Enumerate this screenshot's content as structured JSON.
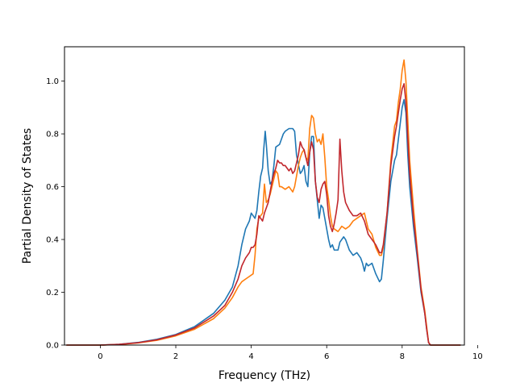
{
  "chart_data": {
    "type": "line",
    "title": "",
    "xlabel": "Frequency (THz)",
    "ylabel": "Partial Density of States",
    "xlim": [
      -0.95,
      9.65
    ],
    "ylim": [
      0.0,
      1.13
    ],
    "grid": false,
    "xticks": [
      0,
      2,
      4,
      6,
      8,
      10
    ],
    "yticks": [
      0.0,
      0.2,
      0.4,
      0.6,
      0.8,
      1.0
    ],
    "xtick_labels": [
      "0",
      "2",
      "4",
      "6",
      "8",
      "10"
    ],
    "ytick_labels": [
      "0.0",
      "0.2",
      "0.4",
      "0.6",
      "0.8",
      "1.0"
    ],
    "series": [
      {
        "color": "#1f77b4",
        "points": [
          [
            -0.9,
            0
          ],
          [
            -0.5,
            0
          ],
          [
            0,
            0
          ],
          [
            0.5,
            0.003
          ],
          [
            1,
            0.01
          ],
          [
            1.5,
            0.022
          ],
          [
            2,
            0.04
          ],
          [
            2.5,
            0.07
          ],
          [
            3,
            0.12
          ],
          [
            3.3,
            0.17
          ],
          [
            3.5,
            0.22
          ],
          [
            3.65,
            0.3
          ],
          [
            3.75,
            0.38
          ],
          [
            3.85,
            0.44
          ],
          [
            3.95,
            0.47
          ],
          [
            4.0,
            0.5
          ],
          [
            4.05,
            0.49
          ],
          [
            4.1,
            0.48
          ],
          [
            4.15,
            0.51
          ],
          [
            4.2,
            0.58
          ],
          [
            4.25,
            0.64
          ],
          [
            4.3,
            0.67
          ],
          [
            4.33,
            0.74
          ],
          [
            4.37,
            0.81
          ],
          [
            4.4,
            0.76
          ],
          [
            4.45,
            0.66
          ],
          [
            4.5,
            0.61
          ],
          [
            4.55,
            0.62
          ],
          [
            4.6,
            0.68
          ],
          [
            4.65,
            0.75
          ],
          [
            4.75,
            0.76
          ],
          [
            4.8,
            0.78
          ],
          [
            4.85,
            0.8
          ],
          [
            4.9,
            0.81
          ],
          [
            5.0,
            0.82
          ],
          [
            5.1,
            0.82
          ],
          [
            5.15,
            0.81
          ],
          [
            5.2,
            0.72
          ],
          [
            5.3,
            0.65
          ],
          [
            5.35,
            0.66
          ],
          [
            5.4,
            0.68
          ],
          [
            5.45,
            0.62
          ],
          [
            5.5,
            0.6
          ],
          [
            5.55,
            0.73
          ],
          [
            5.6,
            0.79
          ],
          [
            5.65,
            0.79
          ],
          [
            5.7,
            0.62
          ],
          [
            5.75,
            0.55
          ],
          [
            5.8,
            0.48
          ],
          [
            5.85,
            0.53
          ],
          [
            5.9,
            0.52
          ],
          [
            6.0,
            0.44
          ],
          [
            6.05,
            0.4
          ],
          [
            6.1,
            0.37
          ],
          [
            6.15,
            0.38
          ],
          [
            6.2,
            0.36
          ],
          [
            6.3,
            0.36
          ],
          [
            6.35,
            0.39
          ],
          [
            6.45,
            0.41
          ],
          [
            6.5,
            0.4
          ],
          [
            6.6,
            0.36
          ],
          [
            6.7,
            0.34
          ],
          [
            6.8,
            0.35
          ],
          [
            6.9,
            0.33
          ],
          [
            6.95,
            0.31
          ],
          [
            7.0,
            0.28
          ],
          [
            7.05,
            0.31
          ],
          [
            7.1,
            0.3
          ],
          [
            7.2,
            0.31
          ],
          [
            7.3,
            0.27
          ],
          [
            7.4,
            0.24
          ],
          [
            7.45,
            0.25
          ],
          [
            7.5,
            0.32
          ],
          [
            7.6,
            0.48
          ],
          [
            7.7,
            0.62
          ],
          [
            7.8,
            0.7
          ],
          [
            7.85,
            0.72
          ],
          [
            7.9,
            0.78
          ],
          [
            7.95,
            0.84
          ],
          [
            8.0,
            0.9
          ],
          [
            8.05,
            0.93
          ],
          [
            8.1,
            0.88
          ],
          [
            8.15,
            0.72
          ],
          [
            8.2,
            0.6
          ],
          [
            8.3,
            0.45
          ],
          [
            8.4,
            0.33
          ],
          [
            8.5,
            0.2
          ],
          [
            8.6,
            0.12
          ],
          [
            8.65,
            0.06
          ],
          [
            8.7,
            0.01
          ],
          [
            8.75,
            0
          ],
          [
            9.0,
            0
          ],
          [
            9.55,
            0
          ]
        ]
      },
      {
        "color": "#ff7f0e",
        "points": [
          [
            -0.9,
            0
          ],
          [
            -0.5,
            0
          ],
          [
            0,
            0
          ],
          [
            0.5,
            0.002
          ],
          [
            1,
            0.008
          ],
          [
            1.5,
            0.018
          ],
          [
            2,
            0.035
          ],
          [
            2.5,
            0.06
          ],
          [
            3,
            0.1
          ],
          [
            3.3,
            0.14
          ],
          [
            3.5,
            0.18
          ],
          [
            3.65,
            0.22
          ],
          [
            3.75,
            0.24
          ],
          [
            3.85,
            0.25
          ],
          [
            3.95,
            0.26
          ],
          [
            4.05,
            0.27
          ],
          [
            4.1,
            0.34
          ],
          [
            4.15,
            0.44
          ],
          [
            4.2,
            0.48
          ],
          [
            4.25,
            0.49
          ],
          [
            4.3,
            0.5
          ],
          [
            4.35,
            0.61
          ],
          [
            4.4,
            0.54
          ],
          [
            4.45,
            0.55
          ],
          [
            4.5,
            0.57
          ],
          [
            4.55,
            0.6
          ],
          [
            4.6,
            0.63
          ],
          [
            4.65,
            0.66
          ],
          [
            4.7,
            0.65
          ],
          [
            4.75,
            0.6
          ],
          [
            4.8,
            0.6
          ],
          [
            4.9,
            0.59
          ],
          [
            5.0,
            0.6
          ],
          [
            5.05,
            0.59
          ],
          [
            5.1,
            0.58
          ],
          [
            5.15,
            0.6
          ],
          [
            5.2,
            0.64
          ],
          [
            5.25,
            0.68
          ],
          [
            5.3,
            0.71
          ],
          [
            5.35,
            0.73
          ],
          [
            5.4,
            0.74
          ],
          [
            5.45,
            0.71
          ],
          [
            5.5,
            0.7
          ],
          [
            5.55,
            0.82
          ],
          [
            5.6,
            0.87
          ],
          [
            5.65,
            0.86
          ],
          [
            5.7,
            0.8
          ],
          [
            5.75,
            0.77
          ],
          [
            5.8,
            0.78
          ],
          [
            5.85,
            0.76
          ],
          [
            5.9,
            0.8
          ],
          [
            5.95,
            0.71
          ],
          [
            6.0,
            0.6
          ],
          [
            6.05,
            0.55
          ],
          [
            6.1,
            0.49
          ],
          [
            6.15,
            0.45
          ],
          [
            6.2,
            0.44
          ],
          [
            6.3,
            0.43
          ],
          [
            6.35,
            0.44
          ],
          [
            6.4,
            0.45
          ],
          [
            6.5,
            0.44
          ],
          [
            6.6,
            0.45
          ],
          [
            6.7,
            0.47
          ],
          [
            6.8,
            0.48
          ],
          [
            6.9,
            0.49
          ],
          [
            7.0,
            0.5
          ],
          [
            7.1,
            0.44
          ],
          [
            7.2,
            0.42
          ],
          [
            7.3,
            0.37
          ],
          [
            7.4,
            0.34
          ],
          [
            7.45,
            0.34
          ],
          [
            7.5,
            0.37
          ],
          [
            7.6,
            0.5
          ],
          [
            7.7,
            0.7
          ],
          [
            7.8,
            0.83
          ],
          [
            7.85,
            0.85
          ],
          [
            7.9,
            0.92
          ],
          [
            7.95,
            0.97
          ],
          [
            8.0,
            1.04
          ],
          [
            8.05,
            1.08
          ],
          [
            8.1,
            1.0
          ],
          [
            8.15,
            0.85
          ],
          [
            8.2,
            0.7
          ],
          [
            8.3,
            0.52
          ],
          [
            8.4,
            0.36
          ],
          [
            8.5,
            0.22
          ],
          [
            8.6,
            0.13
          ],
          [
            8.65,
            0.07
          ],
          [
            8.7,
            0.01
          ],
          [
            8.75,
            0
          ],
          [
            9.0,
            0
          ],
          [
            9.55,
            0
          ]
        ]
      },
      {
        "color": "#c1272d",
        "points": [
          [
            -0.9,
            0
          ],
          [
            -0.5,
            0
          ],
          [
            0,
            0
          ],
          [
            0.5,
            0.003
          ],
          [
            1,
            0.009
          ],
          [
            1.5,
            0.02
          ],
          [
            2,
            0.038
          ],
          [
            2.5,
            0.065
          ],
          [
            3,
            0.11
          ],
          [
            3.3,
            0.15
          ],
          [
            3.5,
            0.2
          ],
          [
            3.65,
            0.25
          ],
          [
            3.75,
            0.3
          ],
          [
            3.85,
            0.33
          ],
          [
            3.95,
            0.35
          ],
          [
            4.0,
            0.37
          ],
          [
            4.05,
            0.37
          ],
          [
            4.1,
            0.38
          ],
          [
            4.15,
            0.42
          ],
          [
            4.2,
            0.49
          ],
          [
            4.25,
            0.48
          ],
          [
            4.3,
            0.47
          ],
          [
            4.35,
            0.5
          ],
          [
            4.4,
            0.52
          ],
          [
            4.45,
            0.54
          ],
          [
            4.5,
            0.58
          ],
          [
            4.55,
            0.62
          ],
          [
            4.6,
            0.65
          ],
          [
            4.65,
            0.67
          ],
          [
            4.7,
            0.7
          ],
          [
            4.75,
            0.69
          ],
          [
            4.8,
            0.69
          ],
          [
            4.85,
            0.68
          ],
          [
            4.9,
            0.68
          ],
          [
            5.0,
            0.66
          ],
          [
            5.05,
            0.67
          ],
          [
            5.1,
            0.65
          ],
          [
            5.15,
            0.66
          ],
          [
            5.2,
            0.69
          ],
          [
            5.25,
            0.72
          ],
          [
            5.3,
            0.77
          ],
          [
            5.35,
            0.75
          ],
          [
            5.4,
            0.74
          ],
          [
            5.45,
            0.71
          ],
          [
            5.5,
            0.68
          ],
          [
            5.55,
            0.73
          ],
          [
            5.6,
            0.77
          ],
          [
            5.65,
            0.74
          ],
          [
            5.7,
            0.62
          ],
          [
            5.75,
            0.56
          ],
          [
            5.8,
            0.54
          ],
          [
            5.85,
            0.59
          ],
          [
            5.9,
            0.61
          ],
          [
            5.95,
            0.62
          ],
          [
            6.0,
            0.57
          ],
          [
            6.05,
            0.49
          ],
          [
            6.1,
            0.45
          ],
          [
            6.15,
            0.43
          ],
          [
            6.2,
            0.46
          ],
          [
            6.25,
            0.5
          ],
          [
            6.3,
            0.55
          ],
          [
            6.35,
            0.78
          ],
          [
            6.4,
            0.66
          ],
          [
            6.45,
            0.58
          ],
          [
            6.5,
            0.54
          ],
          [
            6.6,
            0.51
          ],
          [
            6.7,
            0.49
          ],
          [
            6.8,
            0.49
          ],
          [
            6.9,
            0.5
          ],
          [
            7.0,
            0.47
          ],
          [
            7.1,
            0.42
          ],
          [
            7.2,
            0.4
          ],
          [
            7.3,
            0.38
          ],
          [
            7.4,
            0.35
          ],
          [
            7.45,
            0.35
          ],
          [
            7.5,
            0.38
          ],
          [
            7.6,
            0.5
          ],
          [
            7.7,
            0.68
          ],
          [
            7.8,
            0.79
          ],
          [
            7.85,
            0.83
          ],
          [
            7.9,
            0.88
          ],
          [
            7.95,
            0.93
          ],
          [
            8.0,
            0.97
          ],
          [
            8.05,
            0.99
          ],
          [
            8.1,
            0.92
          ],
          [
            8.15,
            0.78
          ],
          [
            8.2,
            0.65
          ],
          [
            8.3,
            0.48
          ],
          [
            8.4,
            0.35
          ],
          [
            8.5,
            0.21
          ],
          [
            8.6,
            0.12
          ],
          [
            8.65,
            0.06
          ],
          [
            8.7,
            0.01
          ],
          [
            8.75,
            0
          ],
          [
            9.0,
            0
          ],
          [
            9.55,
            0
          ]
        ]
      }
    ]
  }
}
